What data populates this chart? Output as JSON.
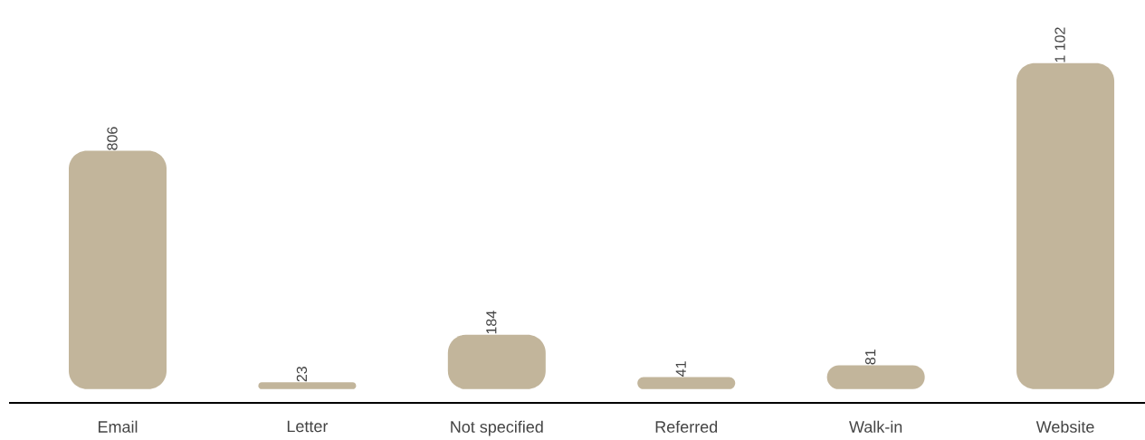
{
  "chart_data": {
    "type": "bar",
    "categories": [
      "Email",
      "Letter",
      "Not specified",
      "Referred",
      "Walk-in",
      "Website"
    ],
    "values": [
      806,
      23,
      184,
      41,
      81,
      1102
    ],
    "value_labels": [
      "806",
      "23",
      "184",
      "41",
      "81",
      "1 102"
    ],
    "color": "#c2b59b"
  }
}
